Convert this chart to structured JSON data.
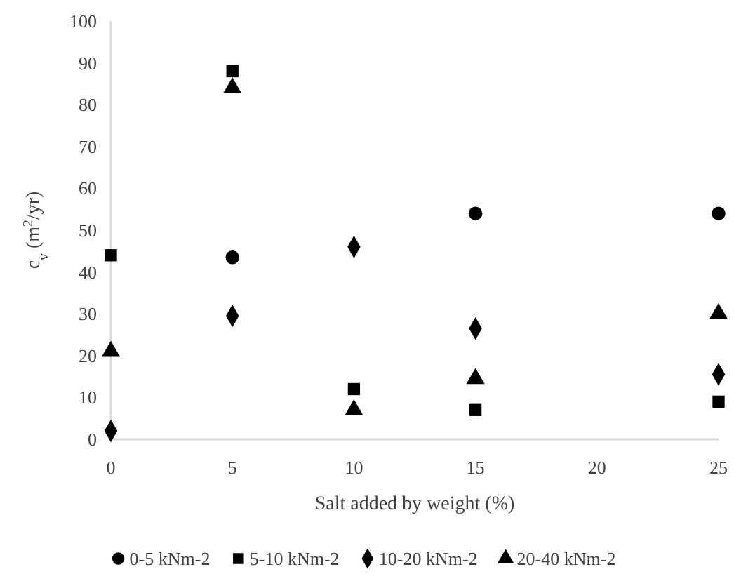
{
  "chart_data": {
    "type": "scatter",
    "xlabel": "Salt added by weight (%)",
    "ylabel": "c$_{v}$ (m$^{2}$/yr)",
    "x": [
      0,
      5,
      10,
      15,
      25
    ],
    "xlim": [
      0,
      25
    ],
    "xticks": [
      0,
      5,
      10,
      15,
      20,
      25
    ],
    "ylim": [
      0,
      100
    ],
    "yticks": [
      0,
      10,
      20,
      30,
      40,
      50,
      60,
      70,
      80,
      90,
      100
    ],
    "grid": false,
    "legend": "bottom",
    "series": [
      {
        "name": "0-5 kNm-2",
        "color": "#000000",
        "marker": "circle",
        "values": [
          null,
          43.5,
          null,
          54,
          54
        ]
      },
      {
        "name": "5-10 kNm-2",
        "color": "#000000",
        "marker": "square",
        "values": [
          44,
          88,
          12,
          7,
          9
        ]
      },
      {
        "name": "10-20 kNm-2",
        "color": "#000000",
        "marker": "diamond",
        "values": [
          2,
          29.5,
          46,
          26.5,
          15.5
        ]
      },
      {
        "name": "20-40 kNm-2",
        "color": "#000000",
        "marker": "triangle",
        "values": [
          21,
          84,
          7,
          14.5,
          30
        ]
      }
    ]
  }
}
